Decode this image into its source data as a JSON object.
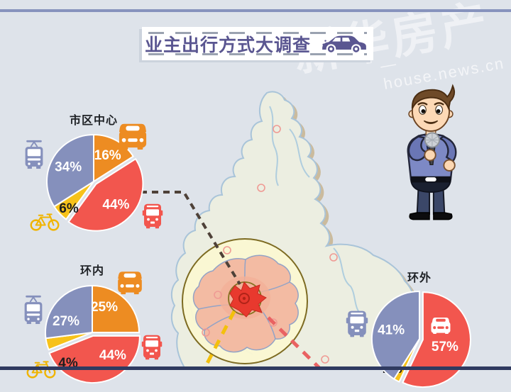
{
  "page": {
    "background_color": "#dee3ea",
    "top_bar_color": "#8793bd",
    "bottom_bar_color": "#2f3a60"
  },
  "banner": {
    "title": "业主出行方式大调查",
    "title_color": "#5a5691",
    "icon": "sedan-car-icon"
  },
  "watermark": {
    "brand": "新华房产",
    "url_text": "— house.news.cn"
  },
  "illustration": {
    "description": "cartoon reporter holding a microphone"
  },
  "map": {
    "description": "city district map with ring-road highlight circle",
    "ring_color": "#7d6b22",
    "core_color": "#e8392e",
    "district_fill": "#f3bba3",
    "land_fill": "#eceee1"
  },
  "chart_data": [
    {
      "type": "pie",
      "title": "市区中心",
      "unit": "%",
      "start_angle": 0,
      "radius": 66,
      "slices": [
        {
          "mode": "taxi",
          "icon": "taxi-icon",
          "value": 16,
          "color": "#ed8c22",
          "text_color": "#ffffff"
        },
        {
          "mode": "bus",
          "icon": "bus-icon",
          "value": 44,
          "color": "#f2564e",
          "text_color": "#ffffff",
          "explode": true
        },
        {
          "mode": "bicycle",
          "icon": "bicycle-icon",
          "value": 6,
          "color": "#f7c21a",
          "text_color": "#1d1d1f",
          "label_pos": [
            40,
            114
          ]
        },
        {
          "mode": "metro",
          "icon": "tram-icon",
          "value": 34,
          "color": "#8590bc",
          "text_color": "#ffffff"
        }
      ]
    },
    {
      "type": "pie",
      "title": "环内",
      "unit": "%",
      "start_angle": 0,
      "radius": 66,
      "slices": [
        {
          "mode": "taxi",
          "icon": "taxi-icon",
          "value": 25,
          "color": "#ed8c22",
          "text_color": "#ffffff",
          "label_pos": [
            92,
            40
          ]
        },
        {
          "mode": "bus",
          "icon": "bus-icon",
          "value": 44,
          "color": "#f2564e",
          "text_color": "#ffffff",
          "explode": true,
          "label_pos": [
            103,
            103
          ]
        },
        {
          "mode": "bicycle",
          "icon": "bicycle-icon",
          "value": 4,
          "color": "#f7c21a",
          "text_color": "#1d1d1f",
          "label_pos": [
            41,
            119
          ]
        },
        {
          "mode": "metro",
          "icon": "tram-icon",
          "value": 27,
          "color": "#8590bc",
          "text_color": "#ffffff",
          "label_pos": [
            38,
            60
          ]
        }
      ]
    },
    {
      "type": "pie",
      "title": "环外",
      "unit": "%",
      "start_angle": 0,
      "radius": 67,
      "slices": [
        {
          "mode": "private-car",
          "icon": "car-icon",
          "value": 57,
          "color": "#f2564e",
          "text_color": "#ffffff",
          "explode": true,
          "label_pos": [
            106,
            86
          ]
        },
        {
          "mode": "bicycle",
          "icon": "bicycle-icon",
          "value": 2,
          "color": "#f7c21a",
          "text_color": "#1d1d1f",
          "label_pos": [
            37,
            118
          ]
        },
        {
          "mode": "bus",
          "icon": "bus-icon",
          "value": 41,
          "color": "#8590bc",
          "text_color": "#ffffff"
        }
      ]
    }
  ]
}
